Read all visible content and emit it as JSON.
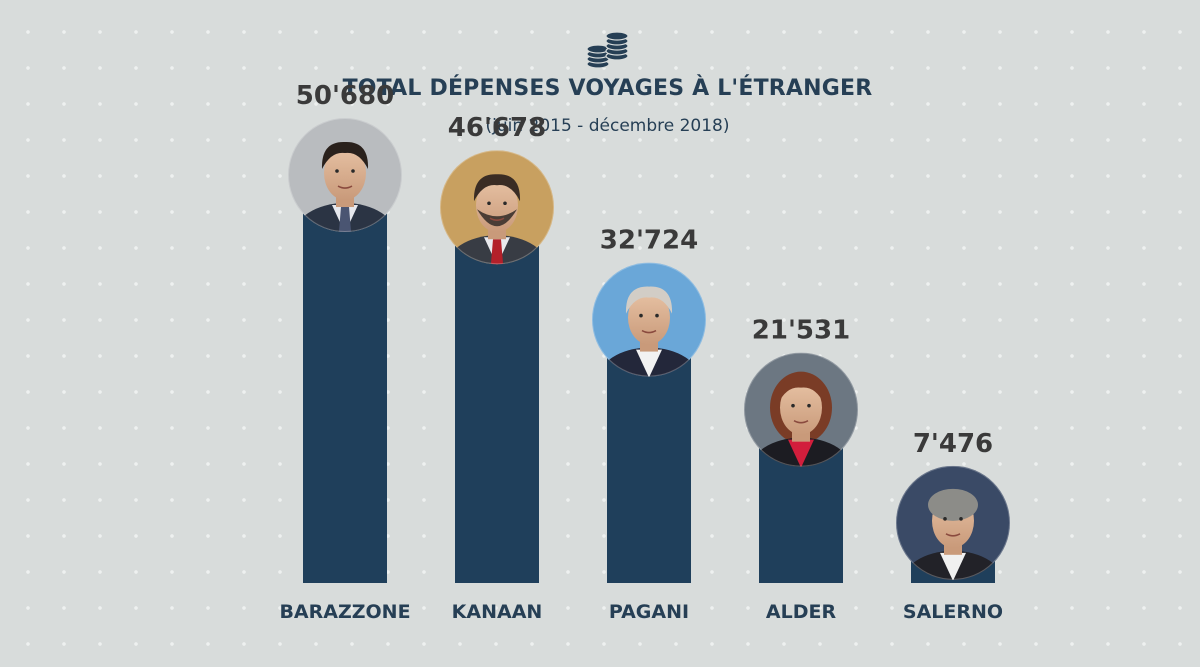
{
  "header": {
    "icon": "coins-stack-icon",
    "title": "TOTAL DÉPENSES VOYAGES À L'ÉTRANGER",
    "subtitle": "(juin 2015 - décembre 2018)"
  },
  "colors": {
    "bar": "#1f3f5b",
    "value_text": "#3a3a3a",
    "label_text": "#263f55",
    "background": "#d8dcdb"
  },
  "chart_data": {
    "type": "bar",
    "title": "TOTAL DÉPENSES VOYAGES À L'ÉTRANGER",
    "subtitle": "(juin 2015 - décembre 2018)",
    "xlabel": "",
    "ylabel": "",
    "categories": [
      "BARAZZONE",
      "KANAAN",
      "PAGANI",
      "ALDER",
      "SALERNO"
    ],
    "values": [
      50680,
      46678,
      32724,
      21531,
      7476
    ],
    "value_labels": [
      "50'680",
      "46'678",
      "32'724",
      "21'531",
      "7'476"
    ],
    "ylim": [
      0,
      60000
    ],
    "grid": false,
    "legend": "none",
    "point_markers": "portrait-avatar"
  }
}
